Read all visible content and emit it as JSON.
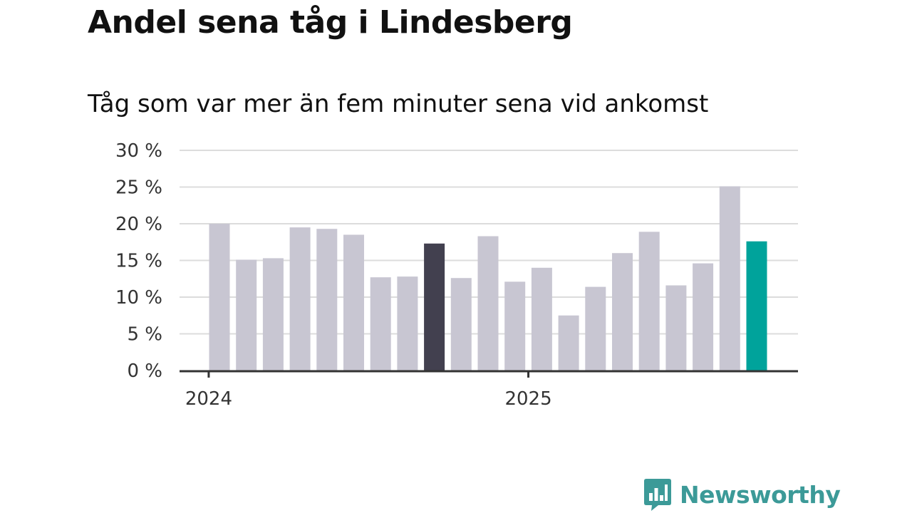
{
  "header": {
    "title": "Andel sena tåg i Lindesberg",
    "subtitle": "Tåg som var mer än fem minuter sena vid ankomst"
  },
  "chart_data": {
    "type": "bar",
    "y_ticks": [
      0,
      5,
      10,
      15,
      20,
      25,
      30
    ],
    "y_tick_labels": [
      "0 %",
      "5 %",
      "10 %",
      "15 %",
      "20 %",
      "25 %",
      "30 %"
    ],
    "ylim": [
      0,
      30
    ],
    "x_tick_labels": [
      {
        "label": "2024",
        "after_bar": -0.4
      },
      {
        "label": "2025",
        "after_bar": 11.5
      }
    ],
    "values": [
      20,
      15.1,
      15.3,
      19.5,
      19.3,
      18.5,
      12.7,
      12.8,
      17.3,
      12.6,
      18.3,
      12.1,
      14.0,
      7.5,
      11.4,
      16.0,
      18.9,
      11.6,
      14.6,
      25.1,
      17.6
    ],
    "grid": true,
    "colors": {
      "default": "#c8c6d2",
      "highlight_dark": "#42404f",
      "latest": "#00a39b",
      "grid": "#dcdcdc",
      "axis": "#333333"
    },
    "highlight_dark_index": 8,
    "latest_index": 20
  },
  "brand": {
    "name": "Newsworthy",
    "logo_icon": "bar-chart-speech-bubble-icon",
    "color": "#3c9a98"
  }
}
